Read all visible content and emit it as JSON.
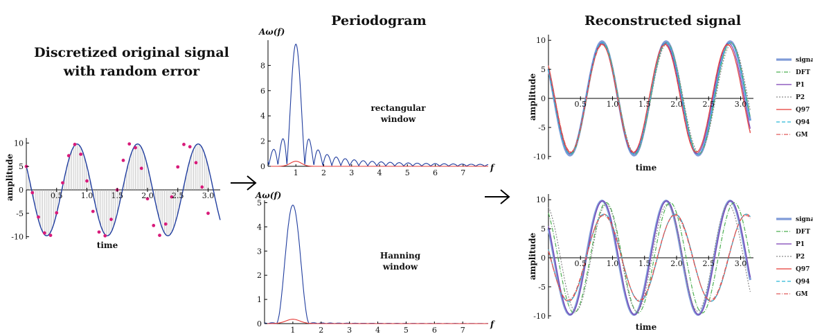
{
  "chart_data": [
    {
      "type": "line",
      "title": "Discretized original signal with random error",
      "title_lines": [
        "Discretized original signal",
        "with random error"
      ],
      "xlabel": "time",
      "ylabel": "amplitude",
      "xlim": [
        0,
        3.2
      ],
      "ylim": [
        -10.5,
        10.5
      ],
      "x_ticks": [
        "0.5",
        "1.0",
        "1.5",
        "2.0",
        "2.5",
        "3.0"
      ],
      "y_ticks": [
        "10",
        "5",
        "0",
        "-5",
        "-10"
      ],
      "series": [
        {
          "x": [
            0,
            0.2,
            0.4,
            0.6,
            0.8,
            1.0,
            1.2,
            1.4,
            1.6,
            1.8,
            2.0,
            2.2,
            2.4,
            2.6,
            2.8,
            3.0,
            3.2
          ],
          "values": [
            5.0,
            -5.8,
            -9.7,
            1.5,
            9.7,
            -3.4,
            -9.2,
            -4.0,
            8.3,
            9.9,
            -2.0,
            -8.7,
            -7.0,
            3.7,
            9.8,
            2.8,
            -3.9
          ]
        }
      ],
      "markers": {
        "x": [
          0,
          0.1,
          0.2,
          0.3,
          0.4,
          0.5,
          0.6,
          0.7,
          0.8,
          0.9,
          1.0,
          1.1,
          1.2,
          1.3,
          1.4,
          1.5,
          1.6,
          1.7,
          1.8,
          1.9,
          2.0,
          2.1,
          2.2,
          2.3,
          2.4,
          2.5,
          2.6,
          2.7,
          2.8,
          2.9,
          3.0
        ],
        "values": [
          5.0,
          -0.6,
          -5.8,
          -9.2,
          -9.7,
          -4.9,
          1.5,
          7.3,
          9.7,
          7.6,
          1.9,
          -4.6,
          -9.0,
          -9.8,
          -6.3,
          0.0,
          6.3,
          9.8,
          9.0,
          4.6,
          -1.9,
          -7.6,
          -9.7,
          -7.3,
          -1.5,
          4.9,
          9.7,
          9.2,
          5.8,
          0.6,
          -5.0
        ]
      }
    },
    {
      "type": "line",
      "title": "Periodogram",
      "ylabel": "Aω(f)",
      "xlabel": "f",
      "annotation": [
        "rectangular",
        "window"
      ],
      "xlim": [
        0,
        7.9
      ],
      "ylim": [
        0,
        10
      ],
      "x_ticks": [
        "1",
        "2",
        "3",
        "4",
        "5",
        "6",
        "7"
      ],
      "y_ticks": [
        "0",
        "2",
        "4",
        "6",
        "8"
      ],
      "series": [
        {
          "x": [
            0,
            0.15,
            0.3,
            0.45,
            0.65,
            0.85,
            1.0,
            1.15,
            1.35,
            1.55,
            1.75,
            2.0,
            2.5,
            3.0,
            4.0,
            5.0,
            6.0,
            7.0,
            7.8
          ],
          "values": [
            0.3,
            1.8,
            0.1,
            2.5,
            0.2,
            5.0,
            9.6,
            5.0,
            0.1,
            1.6,
            0.1,
            0.9,
            0.7,
            0.55,
            0.4,
            0.3,
            0.25,
            0.2,
            0.15
          ]
        },
        {
          "x": [
            0.6,
            1.0,
            1.4
          ],
          "values": [
            0,
            0.4,
            0
          ]
        }
      ]
    },
    {
      "type": "line",
      "ylabel": "Aω(f)",
      "xlabel": "f",
      "annotation": [
        "Hanning",
        "window"
      ],
      "xlim": [
        0,
        7.9
      ],
      "ylim": [
        0,
        5.1
      ],
      "x_ticks": [
        "1",
        "2",
        "3",
        "4",
        "5",
        "6",
        "7"
      ],
      "y_ticks": [
        "0",
        "1",
        "2",
        "3",
        "4",
        "5"
      ],
      "series": [
        {
          "x": [
            0,
            0.5,
            0.75,
            1.0,
            1.25,
            1.5,
            1.7,
            1.9,
            2.1,
            7.8
          ],
          "values": [
            0.05,
            0.05,
            2.5,
            4.9,
            2.5,
            0.05,
            0.0,
            0.1,
            0.0,
            0.0
          ]
        },
        {
          "x": [
            0.5,
            1.0,
            1.5
          ],
          "values": [
            0,
            0.18,
            0
          ]
        }
      ]
    },
    {
      "type": "line",
      "title": "Reconstructed signal",
      "xlabel": "time",
      "ylabel": "amplitude",
      "xlim": [
        0,
        3.2
      ],
      "ylim": [
        -10.5,
        10.5
      ],
      "x_ticks": [
        "0.5",
        "1.0",
        "1.5",
        "2.0",
        "2.5",
        "3.0"
      ],
      "y_ticks": [
        "10",
        "5",
        "0",
        "-5",
        "-10"
      ],
      "legend": [
        "signal",
        "DFT",
        "P1",
        "P2",
        "Q97",
        "Q94",
        "GM"
      ],
      "legend_placement": "right"
    },
    {
      "type": "line",
      "xlabel": "time",
      "ylabel": "amplitude",
      "xlim": [
        0,
        3.2
      ],
      "ylim": [
        -10.5,
        10.5
      ],
      "x_ticks": [
        "0.5",
        "1.0",
        "1.5",
        "2.0",
        "2.5",
        "3.0"
      ],
      "y_ticks": [
        "10",
        "5",
        "0",
        "-5",
        "-10"
      ],
      "legend": [
        "signal",
        "DFT",
        "P1",
        "P2",
        "Q97",
        "Q94",
        "GM"
      ],
      "legend_placement": "right"
    }
  ],
  "colors": {
    "signal": "#7f9bd8",
    "DFT": "#4caf50",
    "P1": "#7b3fb5",
    "P2": "#888888",
    "Q97": "#e53935",
    "Q94": "#29b6d6",
    "GM": "#e05a5a",
    "periodogram": "#1f3c9e",
    "marker": "#d81b7a"
  }
}
